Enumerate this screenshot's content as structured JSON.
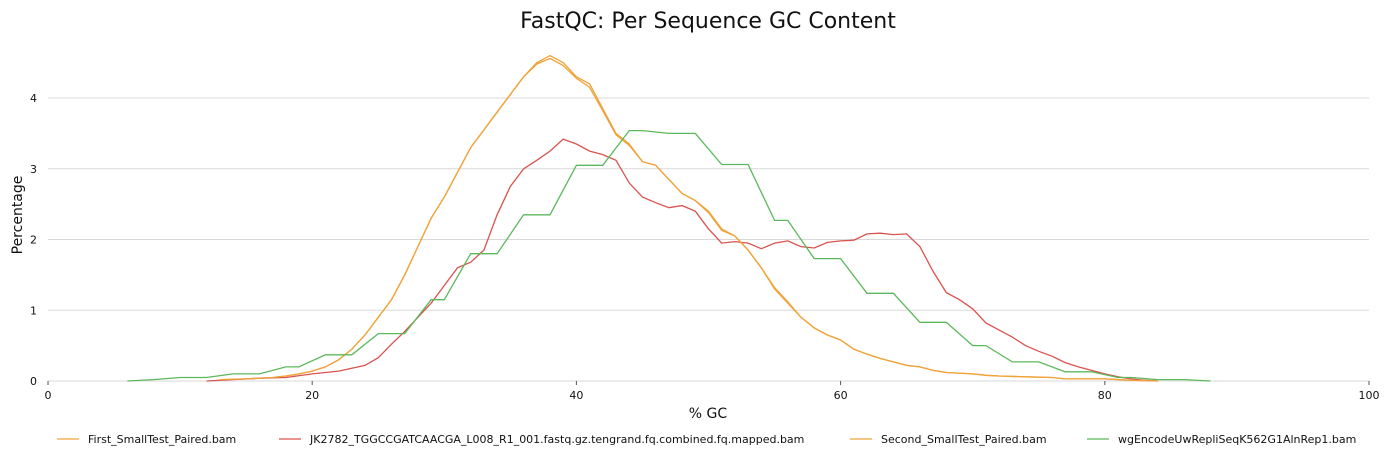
{
  "chart_data": {
    "type": "line",
    "title": "FastQC: Per Sequence GC Content",
    "xlabel": "% GC",
    "ylabel": "Percentage",
    "xlim": [
      0,
      100
    ],
    "ylim": [
      0,
      4.75
    ],
    "x_ticks": [
      "0",
      "20",
      "40",
      "60",
      "80",
      "100"
    ],
    "y_ticks": [
      "0",
      "1",
      "2",
      "3",
      "4"
    ],
    "grid": true,
    "legend_position": "bottom",
    "series": [
      {
        "name": "First_SmallTest_Paired.bam",
        "color": "#f0a33a",
        "points": [
          [
            13,
            0.02
          ],
          [
            15,
            0.03
          ],
          [
            17,
            0.05
          ],
          [
            18,
            0.07
          ],
          [
            19,
            0.1
          ],
          [
            20,
            0.14
          ],
          [
            21,
            0.2
          ],
          [
            22,
            0.3
          ],
          [
            23,
            0.45
          ],
          [
            24,
            0.65
          ],
          [
            25,
            0.9
          ],
          [
            26,
            1.15
          ],
          [
            27,
            1.5
          ],
          [
            28,
            1.9
          ],
          [
            29,
            2.3
          ],
          [
            30,
            2.6
          ],
          [
            31,
            2.95
          ],
          [
            32,
            3.3
          ],
          [
            33,
            3.55
          ],
          [
            34,
            3.8
          ],
          [
            35,
            4.05
          ],
          [
            36,
            4.3
          ],
          [
            37,
            4.5
          ],
          [
            38,
            4.6
          ],
          [
            39,
            4.5
          ],
          [
            40,
            4.3
          ],
          [
            41,
            4.2
          ],
          [
            42,
            3.85
          ],
          [
            43,
            3.5
          ],
          [
            44,
            3.35
          ],
          [
            45,
            3.1
          ],
          [
            46,
            3.05
          ],
          [
            47,
            2.85
          ],
          [
            48,
            2.65
          ],
          [
            49,
            2.55
          ],
          [
            50,
            2.4
          ],
          [
            51,
            2.15
          ],
          [
            52,
            2.05
          ],
          [
            53,
            1.85
          ],
          [
            54,
            1.6
          ],
          [
            55,
            1.3
          ],
          [
            56,
            1.1
          ],
          [
            57,
            0.9
          ],
          [
            58,
            0.75
          ],
          [
            59,
            0.65
          ],
          [
            60,
            0.58
          ],
          [
            61,
            0.45
          ],
          [
            62,
            0.38
          ],
          [
            63,
            0.32
          ],
          [
            64,
            0.27
          ],
          [
            65,
            0.22
          ],
          [
            66,
            0.2
          ],
          [
            67,
            0.15
          ],
          [
            68,
            0.12
          ],
          [
            70,
            0.1
          ],
          [
            71,
            0.08
          ],
          [
            72,
            0.07
          ],
          [
            74,
            0.06
          ],
          [
            76,
            0.05
          ],
          [
            77,
            0.03
          ],
          [
            80,
            0.03
          ],
          [
            82,
            0.01
          ],
          [
            84,
            0.0
          ]
        ]
      },
      {
        "name": "JK2782_TGGCCGATCAACGA_L008_R1_001.fastq.gz.tengrand.fq.combined.fq.mapped.bam",
        "color": "#d9534f",
        "points": [
          [
            12,
            0.0
          ],
          [
            14,
            0.02
          ],
          [
            16,
            0.04
          ],
          [
            18,
            0.05
          ],
          [
            20,
            0.1
          ],
          [
            22,
            0.14
          ],
          [
            23,
            0.18
          ],
          [
            24,
            0.22
          ],
          [
            25,
            0.33
          ],
          [
            26,
            0.52
          ],
          [
            27,
            0.7
          ],
          [
            28,
            0.9
          ],
          [
            29,
            1.1
          ],
          [
            30,
            1.35
          ],
          [
            31,
            1.6
          ],
          [
            32,
            1.68
          ],
          [
            33,
            1.85
          ],
          [
            34,
            2.35
          ],
          [
            35,
            2.75
          ],
          [
            36,
            3.0
          ],
          [
            37,
            3.12
          ],
          [
            38,
            3.25
          ],
          [
            39,
            3.42
          ],
          [
            40,
            3.35
          ],
          [
            41,
            3.25
          ],
          [
            42,
            3.2
          ],
          [
            43,
            3.12
          ],
          [
            44,
            2.8
          ],
          [
            45,
            2.6
          ],
          [
            46,
            2.52
          ],
          [
            47,
            2.45
          ],
          [
            48,
            2.48
          ],
          [
            49,
            2.4
          ],
          [
            50,
            2.15
          ],
          [
            51,
            1.95
          ],
          [
            52,
            1.97
          ],
          [
            53,
            1.95
          ],
          [
            54,
            1.87
          ],
          [
            55,
            1.95
          ],
          [
            56,
            1.98
          ],
          [
            57,
            1.9
          ],
          [
            58,
            1.88
          ],
          [
            59,
            1.96
          ],
          [
            60,
            1.98
          ],
          [
            61,
            1.99
          ],
          [
            62,
            2.08
          ],
          [
            63,
            2.09
          ],
          [
            64,
            2.07
          ],
          [
            65,
            2.08
          ],
          [
            66,
            1.9
          ],
          [
            67,
            1.55
          ],
          [
            68,
            1.25
          ],
          [
            69,
            1.15
          ],
          [
            70,
            1.02
          ],
          [
            71,
            0.82
          ],
          [
            72,
            0.72
          ],
          [
            73,
            0.62
          ],
          [
            74,
            0.5
          ],
          [
            75,
            0.42
          ],
          [
            76,
            0.35
          ],
          [
            77,
            0.26
          ],
          [
            78,
            0.2
          ],
          [
            79,
            0.15
          ],
          [
            80,
            0.1
          ],
          [
            81,
            0.06
          ],
          [
            82,
            0.03
          ],
          [
            83,
            0.01
          ],
          [
            84,
            0.0
          ]
        ]
      },
      {
        "name": "Second_SmallTest_Paired.bam",
        "color": "#f0a33a",
        "points": [
          [
            13,
            0.02
          ],
          [
            15,
            0.03
          ],
          [
            17,
            0.05
          ],
          [
            18,
            0.07
          ],
          [
            19,
            0.1
          ],
          [
            20,
            0.14
          ],
          [
            21,
            0.2
          ],
          [
            22,
            0.3
          ],
          [
            23,
            0.45
          ],
          [
            24,
            0.65
          ],
          [
            25,
            0.9
          ],
          [
            26,
            1.15
          ],
          [
            27,
            1.5
          ],
          [
            28,
            1.9
          ],
          [
            29,
            2.3
          ],
          [
            30,
            2.6
          ],
          [
            31,
            2.95
          ],
          [
            32,
            3.3
          ],
          [
            33,
            3.55
          ],
          [
            34,
            3.8
          ],
          [
            35,
            4.05
          ],
          [
            36,
            4.3
          ],
          [
            37,
            4.48
          ],
          [
            38,
            4.56
          ],
          [
            39,
            4.46
          ],
          [
            40,
            4.28
          ],
          [
            41,
            4.15
          ],
          [
            42,
            3.82
          ],
          [
            43,
            3.48
          ],
          [
            44,
            3.33
          ],
          [
            45,
            3.1
          ],
          [
            46,
            3.05
          ],
          [
            47,
            2.85
          ],
          [
            48,
            2.65
          ],
          [
            49,
            2.55
          ],
          [
            50,
            2.38
          ],
          [
            51,
            2.13
          ],
          [
            52,
            2.05
          ],
          [
            53,
            1.85
          ],
          [
            54,
            1.6
          ],
          [
            55,
            1.32
          ],
          [
            56,
            1.12
          ],
          [
            57,
            0.9
          ],
          [
            58,
            0.75
          ],
          [
            59,
            0.65
          ],
          [
            60,
            0.58
          ],
          [
            61,
            0.45
          ],
          [
            62,
            0.38
          ],
          [
            63,
            0.32
          ],
          [
            64,
            0.27
          ],
          [
            65,
            0.22
          ],
          [
            66,
            0.2
          ],
          [
            67,
            0.15
          ],
          [
            68,
            0.12
          ],
          [
            70,
            0.1
          ],
          [
            71,
            0.08
          ],
          [
            72,
            0.07
          ],
          [
            74,
            0.06
          ],
          [
            76,
            0.05
          ],
          [
            77,
            0.03
          ],
          [
            80,
            0.03
          ],
          [
            82,
            0.01
          ],
          [
            84,
            0.0
          ]
        ]
      },
      {
        "name": "wgEncodeUwRepliSeqK562G1AlnRep1.bam",
        "color": "#5cb85c",
        "points": [
          [
            6,
            0.0
          ],
          [
            8,
            0.02
          ],
          [
            10,
            0.05
          ],
          [
            12,
            0.05
          ],
          [
            14,
            0.1
          ],
          [
            16,
            0.1
          ],
          [
            18,
            0.2
          ],
          [
            19,
            0.2
          ],
          [
            21,
            0.37
          ],
          [
            23,
            0.37
          ],
          [
            25,
            0.67
          ],
          [
            27,
            0.67
          ],
          [
            29,
            1.15
          ],
          [
            30,
            1.15
          ],
          [
            32,
            1.8
          ],
          [
            34,
            1.8
          ],
          [
            36,
            2.35
          ],
          [
            38,
            2.35
          ],
          [
            40,
            3.05
          ],
          [
            42,
            3.05
          ],
          [
            44,
            3.54
          ],
          [
            45,
            3.54
          ],
          [
            47,
            3.5
          ],
          [
            49,
            3.5
          ],
          [
            51,
            3.06
          ],
          [
            53,
            3.06
          ],
          [
            55,
            2.27
          ],
          [
            56,
            2.27
          ],
          [
            58,
            1.73
          ],
          [
            60,
            1.73
          ],
          [
            62,
            1.24
          ],
          [
            64,
            1.24
          ],
          [
            66,
            0.83
          ],
          [
            68,
            0.83
          ],
          [
            70,
            0.5
          ],
          [
            71,
            0.5
          ],
          [
            73,
            0.27
          ],
          [
            75,
            0.27
          ],
          [
            77,
            0.13
          ],
          [
            79,
            0.13
          ],
          [
            81,
            0.05
          ],
          [
            82,
            0.05
          ],
          [
            84,
            0.02
          ],
          [
            86,
            0.02
          ],
          [
            88,
            0.0
          ]
        ]
      }
    ]
  }
}
